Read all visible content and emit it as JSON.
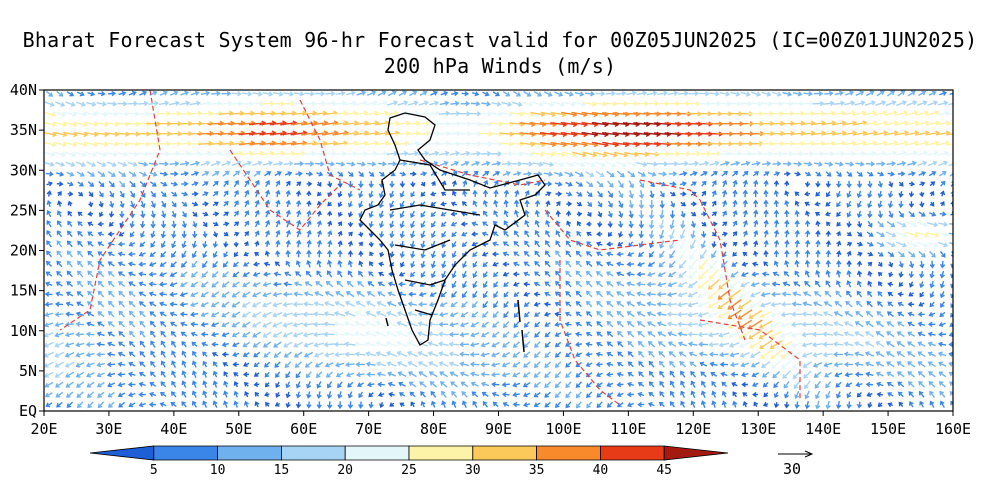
{
  "title": {
    "line1": "Bharat Forecast System 96-hr Forecast valid for 00Z05JUN2025 (IC=00Z01JUN2025)",
    "line2": "200 hPa Winds (m/s)"
  },
  "map": {
    "lon_range": [
      20,
      160
    ],
    "lat_range": [
      0,
      40
    ],
    "lat_labels": [
      "EQ",
      "5N",
      "10N",
      "15N",
      "20N",
      "25N",
      "30N",
      "35N",
      "40N"
    ],
    "lon_labels": [
      "20E",
      "30E",
      "40E",
      "50E",
      "60E",
      "70E",
      "80E",
      "90E",
      "100E",
      "110E",
      "120E",
      "130E",
      "140E",
      "150E",
      "160E"
    ]
  },
  "colorbar": {
    "ticks": [
      "5",
      "10",
      "15",
      "20",
      "25",
      "30",
      "35",
      "40",
      "45"
    ],
    "colors": [
      "#1f5fd6",
      "#3a86e8",
      "#6fb1ef",
      "#a7d3f5",
      "#e3f7fb",
      "#fdf3a8",
      "#fbc85a",
      "#f88a2c",
      "#e73b17",
      "#a31a10"
    ]
  },
  "reference_vector": {
    "label": "30"
  },
  "colors": {
    "state_borders": "#000000",
    "country_borders": "#e04040"
  }
}
